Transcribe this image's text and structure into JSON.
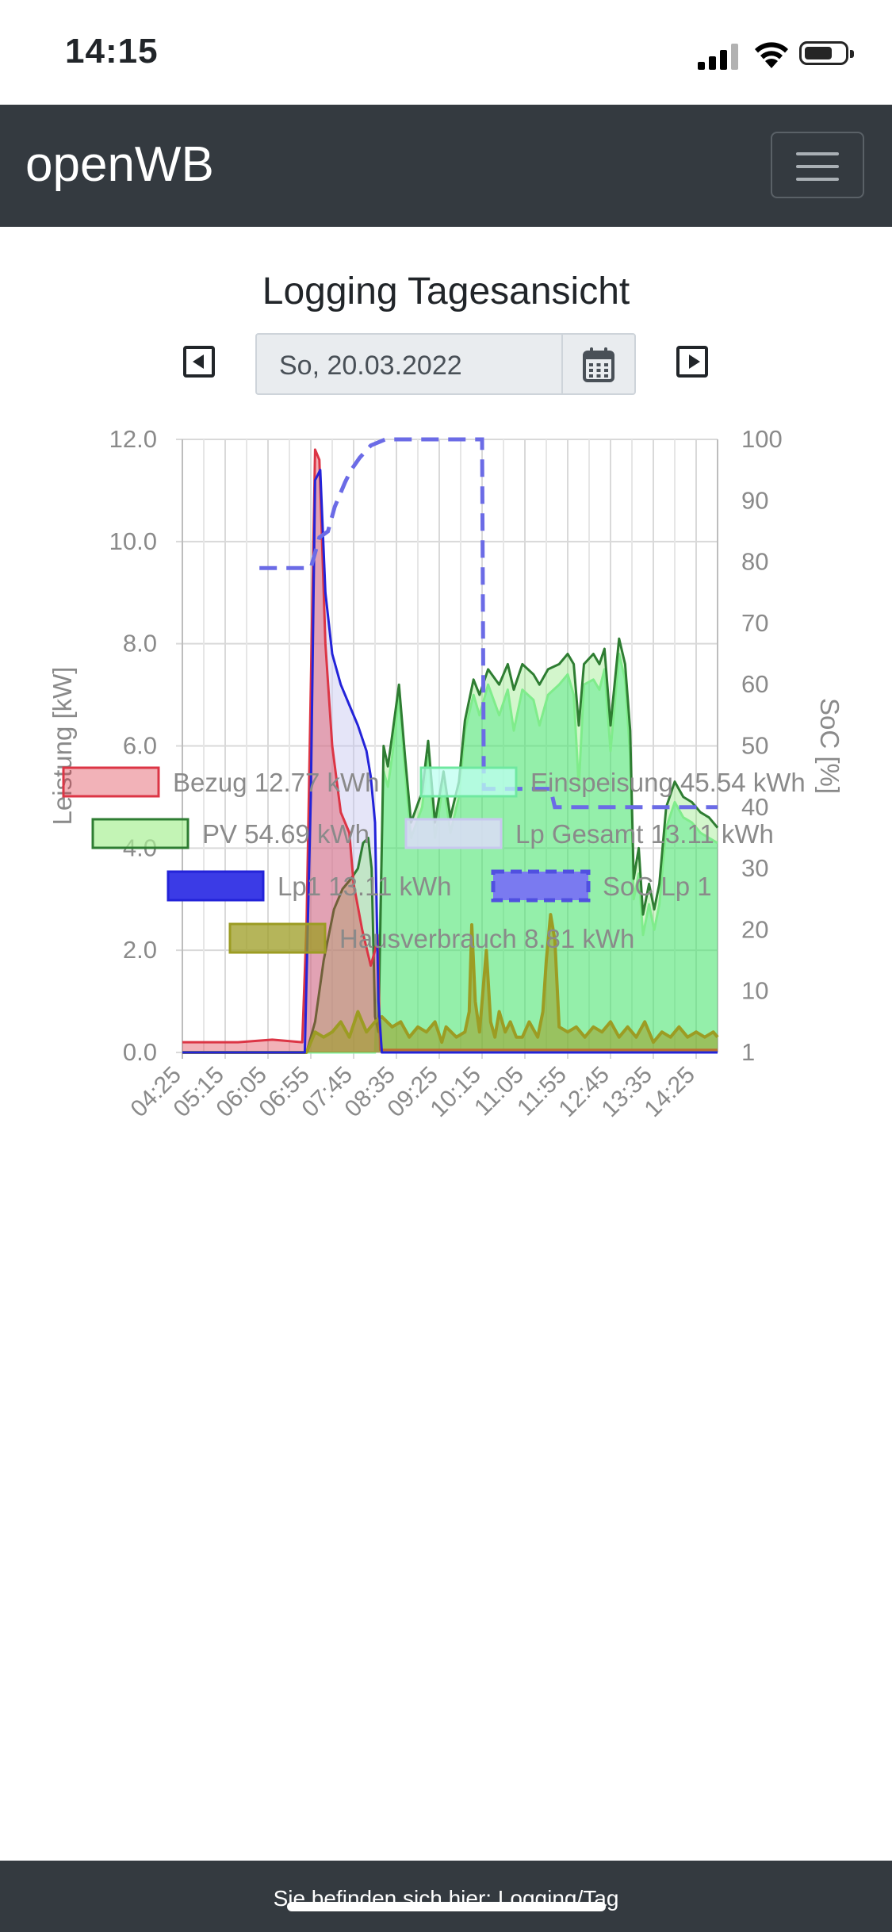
{
  "status_bar": {
    "time": "14:15"
  },
  "navbar": {
    "brand": "openWB"
  },
  "page": {
    "title": "Logging Tagesansicht",
    "date_value": "So, 20.03.2022"
  },
  "footer": {
    "text": "Sie befinden sich hier: Logging/Tag"
  },
  "colors": {
    "navbar": "#343a40",
    "bezug": "#dc3545",
    "einspeisung": "#00e676",
    "pv": "#2e7d32",
    "lp_gesamt": "#c5c5f0",
    "lp1": "#2323d9",
    "soc": "#6b6be6",
    "hausverbrauch": "#9c9c23"
  },
  "chart_data": {
    "type": "area",
    "ylabel": "Leistung [kW]",
    "y2label": "SoC [%]",
    "ylim": [
      0,
      12
    ],
    "y2lim": [
      0,
      100
    ],
    "y_ticks": [
      "0.0",
      "2.0",
      "4.0",
      "6.0",
      "8.0",
      "10.0",
      "12.0"
    ],
    "y2_ticks": [
      "1",
      "10",
      "20",
      "30",
      "40",
      "50",
      "60",
      "70",
      "80",
      "90",
      "100"
    ],
    "x_ticks": [
      "04:25",
      "05:15",
      "06:05",
      "06:55",
      "07:45",
      "08:35",
      "09:25",
      "10:15",
      "11:05",
      "11:55",
      "12:45",
      "13:35",
      "14:25"
    ],
    "x_range": [
      "04:25",
      "14:50"
    ],
    "grid": true,
    "legend_position": "bottom",
    "legend": [
      {
        "label": "Bezug 12.77 kWh",
        "color": "#dc3545"
      },
      {
        "label": "Einspeisung 45.54 kWh",
        "color": "#00e676"
      },
      {
        "label": "PV 54.69 kWh",
        "color": "#2e7d32"
      },
      {
        "label": "Lp Gesamt 13.11 kWh",
        "color": "#c5c5f0"
      },
      {
        "label": "Lp1 13.11 kWh",
        "color": "#2323d9"
      },
      {
        "label": "SoC Lp 1",
        "color": "#6b6be6"
      },
      {
        "label": "Hausverbrauch 8.81 kWh",
        "color": "#9c9c23"
      }
    ],
    "series": [
      {
        "name": "Bezug 12.77 kWh",
        "points": [
          [
            "04:25",
            0.2
          ],
          [
            "05:30",
            0.2
          ],
          [
            "06:10",
            0.25
          ],
          [
            "06:45",
            0.2
          ],
          [
            "06:50",
            2.5
          ],
          [
            "07:00",
            11.8
          ],
          [
            "07:05",
            11.6
          ],
          [
            "07:12",
            8.0
          ],
          [
            "07:20",
            6.0
          ],
          [
            "07:30",
            4.7
          ],
          [
            "07:40",
            4.3
          ],
          [
            "07:45",
            3.3
          ],
          [
            "07:55",
            2.4
          ],
          [
            "08:05",
            1.7
          ],
          [
            "08:10",
            2.0
          ],
          [
            "08:13",
            2.3
          ],
          [
            "08:16",
            0.05
          ],
          [
            "14:50",
            0.05
          ]
        ]
      },
      {
        "name": "Einspeisung 45.54 kWh",
        "points": [
          [
            "04:25",
            0
          ],
          [
            "08:10",
            0
          ],
          [
            "08:15",
            2.0
          ],
          [
            "08:20",
            5.5
          ],
          [
            "08:25",
            5.2
          ],
          [
            "08:30",
            5.8
          ],
          [
            "08:38",
            7.0
          ],
          [
            "08:45",
            5.5
          ],
          [
            "08:52",
            4.2
          ],
          [
            "09:05",
            4.8
          ],
          [
            "09:12",
            5.8
          ],
          [
            "09:20",
            4.2
          ],
          [
            "09:30",
            5.3
          ],
          [
            "09:38",
            4.3
          ],
          [
            "09:48",
            5.0
          ],
          [
            "09:55",
            6.3
          ],
          [
            "10:05",
            7.0
          ],
          [
            "10:12",
            6.6
          ],
          [
            "10:22",
            7.2
          ],
          [
            "10:35",
            6.6
          ],
          [
            "10:45",
            7.1
          ],
          [
            "10:52",
            6.3
          ],
          [
            "11:02",
            7.1
          ],
          [
            "11:15",
            6.9
          ],
          [
            "11:22",
            6.4
          ],
          [
            "11:32",
            7.0
          ],
          [
            "11:45",
            7.2
          ],
          [
            "11:55",
            7.4
          ],
          [
            "12:02",
            7.0
          ],
          [
            "12:08",
            5.2
          ],
          [
            "12:14",
            7.2
          ],
          [
            "12:25",
            7.3
          ],
          [
            "12:32",
            7.1
          ],
          [
            "12:38",
            7.5
          ],
          [
            "12:45",
            5.9
          ],
          [
            "12:55",
            7.8
          ],
          [
            "13:02",
            7.3
          ],
          [
            "13:08",
            5.8
          ],
          [
            "13:12",
            3.0
          ],
          [
            "13:18",
            3.5
          ],
          [
            "13:23",
            2.3
          ],
          [
            "13:30",
            2.9
          ],
          [
            "13:36",
            2.4
          ],
          [
            "13:42",
            2.9
          ],
          [
            "13:50",
            4.4
          ],
          [
            "14:00",
            4.9
          ],
          [
            "14:10",
            4.6
          ],
          [
            "14:20",
            4.5
          ],
          [
            "14:30",
            4.3
          ],
          [
            "14:40",
            4.2
          ],
          [
            "14:50",
            4.1
          ]
        ]
      },
      {
        "name": "PV 54.69 kWh",
        "points": [
          [
            "04:25",
            0
          ],
          [
            "06:50",
            0
          ],
          [
            "07:00",
            0.6
          ],
          [
            "07:10",
            1.8
          ],
          [
            "07:22",
            2.8
          ],
          [
            "07:32",
            3.2
          ],
          [
            "07:42",
            3.4
          ],
          [
            "07:50",
            3.6
          ],
          [
            "07:56",
            4.1
          ],
          [
            "08:02",
            4.2
          ],
          [
            "08:06",
            3.6
          ],
          [
            "08:10",
            0.7
          ],
          [
            "08:14",
            0.4
          ],
          [
            "08:20",
            6.0
          ],
          [
            "08:25",
            5.6
          ],
          [
            "08:30",
            6.2
          ],
          [
            "08:38",
            7.2
          ],
          [
            "08:45",
            5.8
          ],
          [
            "08:52",
            4.5
          ],
          [
            "09:05",
            5.1
          ],
          [
            "09:12",
            6.1
          ],
          [
            "09:20",
            4.5
          ],
          [
            "09:30",
            5.5
          ],
          [
            "09:38",
            4.6
          ],
          [
            "09:48",
            5.3
          ],
          [
            "09:55",
            6.5
          ],
          [
            "10:05",
            7.3
          ],
          [
            "10:12",
            7.0
          ],
          [
            "10:22",
            7.5
          ],
          [
            "10:35",
            7.2
          ],
          [
            "10:45",
            7.6
          ],
          [
            "10:52",
            7.1
          ],
          [
            "11:02",
            7.6
          ],
          [
            "11:15",
            7.4
          ],
          [
            "11:22",
            7.2
          ],
          [
            "11:32",
            7.5
          ],
          [
            "11:45",
            7.6
          ],
          [
            "11:55",
            7.8
          ],
          [
            "12:02",
            7.6
          ],
          [
            "12:08",
            6.4
          ],
          [
            "12:14",
            7.6
          ],
          [
            "12:25",
            7.8
          ],
          [
            "12:32",
            7.6
          ],
          [
            "12:38",
            7.9
          ],
          [
            "12:45",
            6.4
          ],
          [
            "12:55",
            8.1
          ],
          [
            "13:02",
            7.6
          ],
          [
            "13:08",
            6.3
          ],
          [
            "13:12",
            3.4
          ],
          [
            "13:18",
            4.0
          ],
          [
            "13:23",
            2.7
          ],
          [
            "13:30",
            3.3
          ],
          [
            "13:36",
            2.8
          ],
          [
            "13:42",
            3.3
          ],
          [
            "13:50",
            4.8
          ],
          [
            "14:00",
            5.3
          ],
          [
            "14:10",
            5.0
          ],
          [
            "14:20",
            4.9
          ],
          [
            "14:30",
            4.7
          ],
          [
            "14:40",
            4.6
          ],
          [
            "14:50",
            4.4
          ]
        ]
      },
      {
        "name": "Lp Gesamt 13.11 kWh",
        "points": [
          [
            "04:25",
            0
          ],
          [
            "06:48",
            0
          ],
          [
            "06:55",
            5.0
          ],
          [
            "07:00",
            11.2
          ],
          [
            "07:06",
            11.4
          ],
          [
            "07:12",
            9.0
          ],
          [
            "07:20",
            7.8
          ],
          [
            "07:30",
            7.2
          ],
          [
            "07:40",
            6.8
          ],
          [
            "07:50",
            6.4
          ],
          [
            "08:00",
            5.9
          ],
          [
            "08:05",
            5.4
          ],
          [
            "08:10",
            4.5
          ],
          [
            "08:14",
            1.0
          ],
          [
            "08:18",
            0
          ],
          [
            "14:50",
            0
          ]
        ]
      },
      {
        "name": "Lp1 13.11 kWh",
        "points": [
          [
            "04:25",
            0
          ],
          [
            "06:48",
            0
          ],
          [
            "06:55",
            5.0
          ],
          [
            "07:00",
            11.2
          ],
          [
            "07:06",
            11.4
          ],
          [
            "07:12",
            9.0
          ],
          [
            "07:20",
            7.8
          ],
          [
            "07:30",
            7.2
          ],
          [
            "07:40",
            6.8
          ],
          [
            "07:50",
            6.4
          ],
          [
            "08:00",
            5.9
          ],
          [
            "08:05",
            5.4
          ],
          [
            "08:10",
            4.5
          ],
          [
            "08:14",
            1.0
          ],
          [
            "08:18",
            0
          ],
          [
            "14:50",
            0
          ]
        ]
      },
      {
        "name": "SoC Lp 1",
        "axis": "y2",
        "points": [
          [
            "05:55",
            79
          ],
          [
            "06:55",
            79
          ],
          [
            "07:05",
            84
          ],
          [
            "07:15",
            85
          ],
          [
            "07:23",
            89
          ],
          [
            "07:35",
            93
          ],
          [
            "07:42",
            95
          ],
          [
            "07:52",
            97
          ],
          [
            "08:05",
            99
          ],
          [
            "08:22",
            100
          ],
          [
            "10:15",
            100
          ],
          [
            "10:17",
            43
          ],
          [
            "11:35",
            43
          ],
          [
            "11:40",
            40
          ],
          [
            "14:50",
            40
          ]
        ]
      },
      {
        "name": "Hausverbrauch 8.81 kWh",
        "points": [
          [
            "04:25",
            0
          ],
          [
            "06:50",
            0
          ],
          [
            "07:00",
            0.4
          ],
          [
            "07:10",
            0.3
          ],
          [
            "07:20",
            0.4
          ],
          [
            "07:30",
            0.6
          ],
          [
            "07:40",
            0.3
          ],
          [
            "07:50",
            0.8
          ],
          [
            "08:00",
            0.4
          ],
          [
            "08:10",
            0.6
          ],
          [
            "08:18",
            0.7
          ],
          [
            "08:30",
            0.5
          ],
          [
            "08:40",
            0.6
          ],
          [
            "08:50",
            0.3
          ],
          [
            "09:00",
            0.5
          ],
          [
            "09:10",
            0.4
          ],
          [
            "09:20",
            0.6
          ],
          [
            "09:28",
            0.2
          ],
          [
            "09:33",
            0.5
          ],
          [
            "09:45",
            0.3
          ],
          [
            "09:55",
            0.4
          ],
          [
            "10:00",
            0.8
          ],
          [
            "10:03",
            2.5
          ],
          [
            "10:07",
            1.0
          ],
          [
            "10:12",
            0.4
          ],
          [
            "10:20",
            2.0
          ],
          [
            "10:25",
            0.6
          ],
          [
            "10:30",
            0.3
          ],
          [
            "10:35",
            0.8
          ],
          [
            "10:42",
            0.4
          ],
          [
            "10:48",
            0.6
          ],
          [
            "10:55",
            0.3
          ],
          [
            "11:02",
            0.3
          ],
          [
            "11:10",
            0.6
          ],
          [
            "11:20",
            0.3
          ],
          [
            "11:26",
            0.8
          ],
          [
            "11:30",
            1.8
          ],
          [
            "11:35",
            2.7
          ],
          [
            "11:40",
            2.2
          ],
          [
            "11:45",
            0.5
          ],
          [
            "11:55",
            0.4
          ],
          [
            "12:05",
            0.5
          ],
          [
            "12:15",
            0.3
          ],
          [
            "12:25",
            0.5
          ],
          [
            "12:35",
            0.4
          ],
          [
            "12:45",
            0.6
          ],
          [
            "12:55",
            0.3
          ],
          [
            "13:05",
            0.5
          ],
          [
            "13:15",
            0.3
          ],
          [
            "13:25",
            0.6
          ],
          [
            "13:35",
            0.2
          ],
          [
            "13:45",
            0.4
          ],
          [
            "13:55",
            0.3
          ],
          [
            "14:05",
            0.5
          ],
          [
            "14:15",
            0.3
          ],
          [
            "14:25",
            0.4
          ],
          [
            "14:35",
            0.3
          ],
          [
            "14:45",
            0.4
          ],
          [
            "14:50",
            0.3
          ]
        ]
      }
    ]
  }
}
